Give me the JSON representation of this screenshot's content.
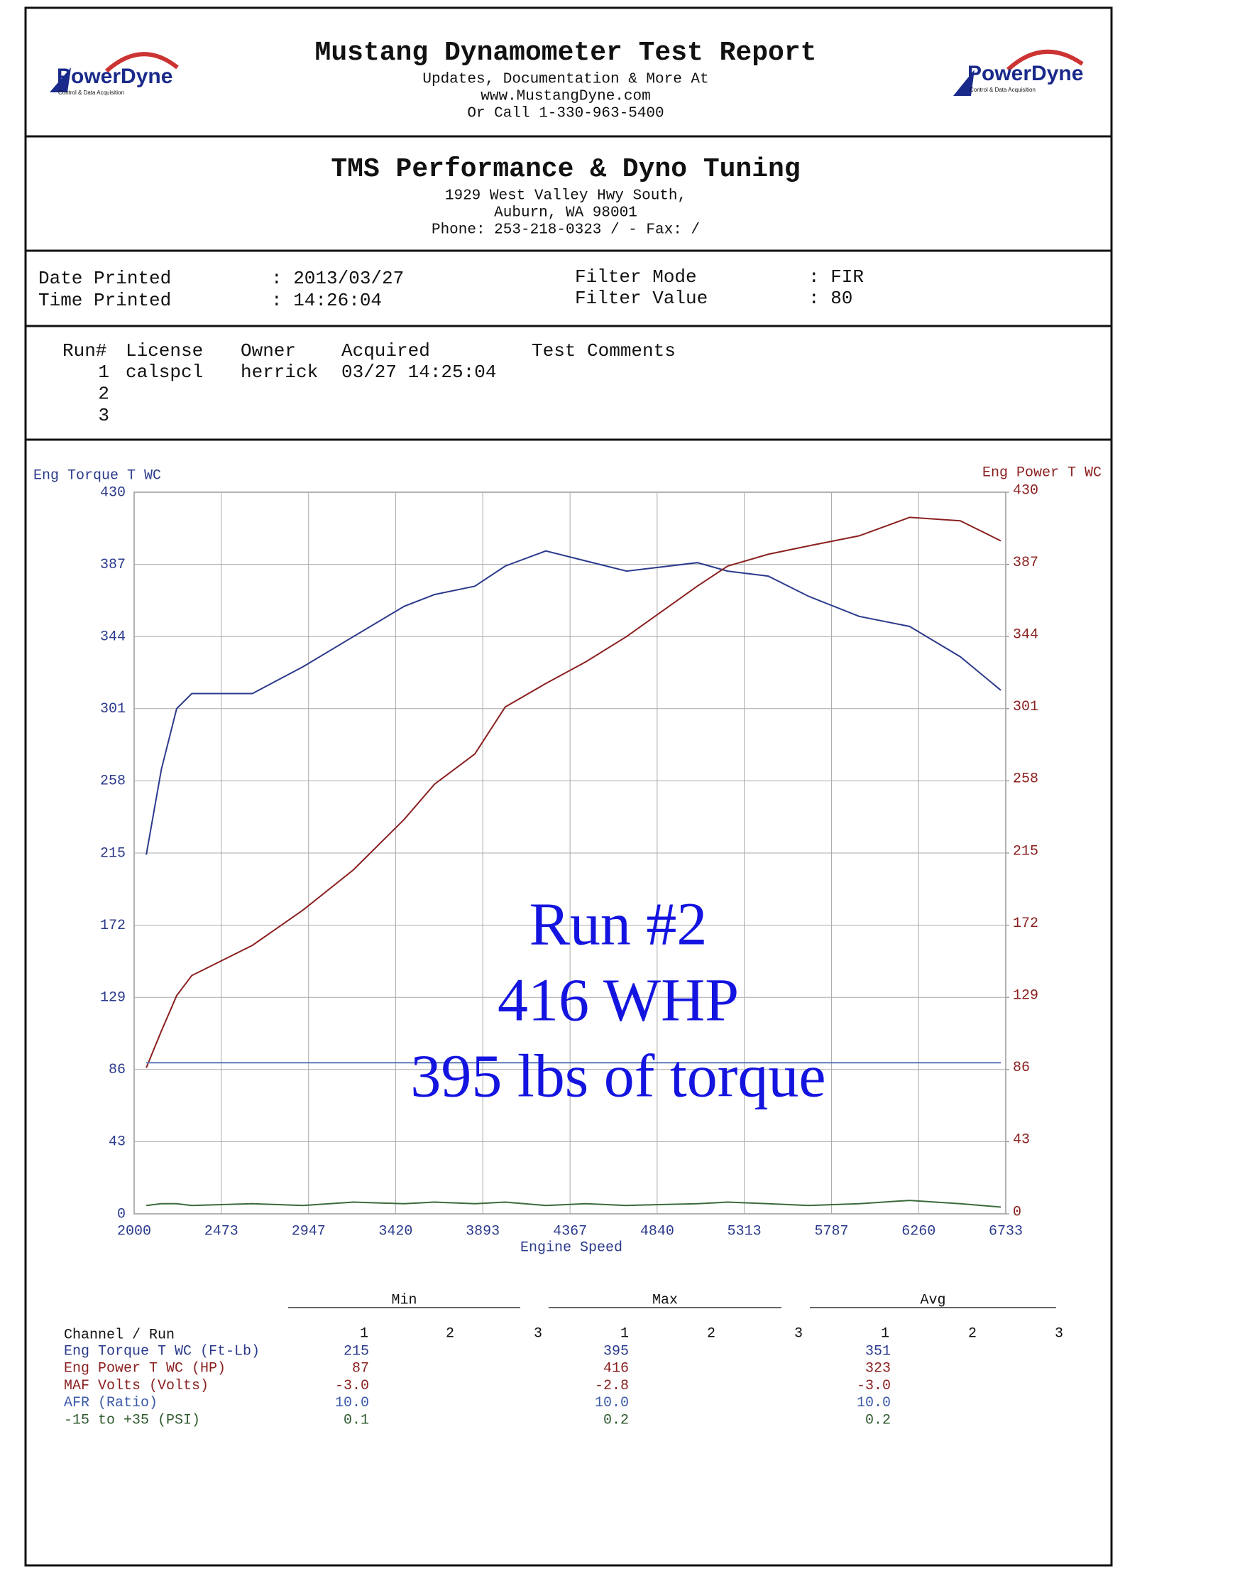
{
  "header": {
    "title": "Mustang Dynamometer Test Report",
    "lines": [
      "Updates, Documentation & More At",
      "www.MustangDyne.com",
      "Or Call 1-330-963-5400"
    ],
    "logo": "PowerDyne",
    "logo_tagline": "Control & Data Acquisition"
  },
  "shop": {
    "name": "TMS Performance & Dyno Tuning",
    "lines": [
      "1929 West Valley Hwy South,",
      "Auburn, WA  98001",
      "Phone: 253-218-0323 /  - Fax:  /"
    ]
  },
  "info": [
    [
      "Date Printed",
      ": 2013/03/27"
    ],
    [
      "Time Printed",
      ": 14:26:04"
    ],
    [
      "Filter Mode",
      ": FIR"
    ],
    [
      "Filter Value",
      ": 80"
    ]
  ],
  "runs": {
    "columns": [
      "Run#",
      "License",
      "Owner",
      "Acquired",
      "Test Comments"
    ],
    "rows": [
      [
        "1",
        "calspcl",
        "herrick",
        "03/27 14:25:04"
      ],
      [
        "2"
      ],
      [
        "3"
      ]
    ]
  },
  "chart_data": {
    "type": "line",
    "xlabel": "Engine Speed",
    "xlim": [
      2000,
      6733
    ],
    "xticks": [
      2000,
      2473,
      2947,
      3420,
      3893,
      4367,
      4840,
      5313,
      5787,
      6260,
      6733
    ],
    "ylim": [
      0,
      430
    ],
    "yticks": [
      0,
      43,
      86,
      129,
      172,
      215,
      258,
      301,
      344,
      387,
      430
    ],
    "y2lim": [
      0,
      430
    ],
    "y2ticks": [
      0,
      43,
      86,
      129,
      172,
      215,
      258,
      301,
      344,
      387,
      430
    ],
    "grid": true,
    "x": [
      2066,
      2148,
      2231,
      2313,
      2642,
      2917,
      3191,
      3466,
      3631,
      3850,
      4015,
      4235,
      4454,
      4674,
      5058,
      5223,
      5443,
      5662,
      5937,
      6211,
      6486,
      6706
    ],
    "series": [
      {
        "name": "Eng Torque T WC",
        "color": "#2b3a8c",
        "values": [
          214,
          265,
          301,
          310,
          310,
          326,
          344,
          362,
          369,
          374,
          386,
          395,
          389,
          383,
          388,
          383,
          380,
          368,
          356,
          350,
          332,
          312
        ]
      },
      {
        "name": "Eng Power T WC",
        "color": "#8b2020",
        "axis": "y2",
        "values": [
          87,
          109,
          130,
          142,
          160,
          181,
          205,
          235,
          256,
          274,
          302,
          316,
          329,
          344,
          374,
          386,
          393,
          398,
          404,
          415,
          413,
          401
        ]
      },
      {
        "color": "#5a7ab8",
        "values": [
          90,
          90,
          90,
          90,
          90,
          90,
          90,
          90,
          90,
          90,
          90,
          90,
          90,
          90,
          90,
          90,
          90,
          90,
          90,
          90,
          90,
          90
        ]
      },
      {
        "color": "#3a6b3a",
        "values": [
          5,
          6,
          6,
          5,
          6,
          5,
          7,
          6,
          7,
          6,
          7,
          5,
          6,
          5,
          6,
          7,
          6,
          5,
          6,
          8,
          6,
          4
        ]
      }
    ],
    "annotations": [
      "Run #2",
      "416 WHP",
      "395 lbs of torque"
    ]
  },
  "summary": {
    "groups": [
      "Min",
      "Max",
      "Avg"
    ],
    "channel_header": "Channel / Run",
    "run_numbers": [
      "1",
      "2",
      "3"
    ],
    "rows": [
      {
        "channel": "Eng Torque T WC (Ft-Lb)",
        "color": "#2b3a8c",
        "values": [
          "215",
          "395",
          "351"
        ]
      },
      {
        "channel": "Eng Power T WC (HP)",
        "color": "#8b2020",
        "values": [
          "87",
          "416",
          "323"
        ]
      },
      {
        "channel": "MAF Volts (Volts)",
        "color": "#8b2020",
        "values": [
          "-3.0",
          "-2.8",
          "-3.0"
        ]
      },
      {
        "channel": "AFR (Ratio)",
        "color": "#3a5aa8",
        "values": [
          "10.0",
          "10.0",
          "10.0"
        ]
      },
      {
        "channel": "-15 to +35 (PSI)",
        "color": "#2f5a2f",
        "values": [
          "0.1",
          "0.2",
          "0.2"
        ]
      }
    ]
  }
}
